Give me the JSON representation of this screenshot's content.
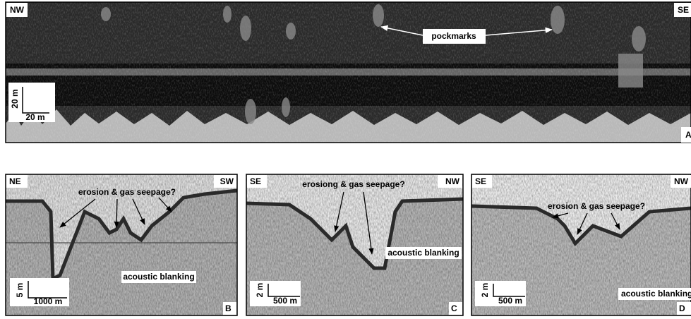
{
  "panel_a": {
    "left_label": "NW",
    "right_label": "SE",
    "annotation": "pockmarks",
    "scale_vertical": "20 m",
    "scale_horizontal": "20 m",
    "panel_label": "A"
  },
  "panels": [
    {
      "left_label": "NE",
      "right_label": "SW",
      "annotation": "erosion & gas seepage?",
      "blanking_label": "acoustic blanking",
      "scale_vertical": "5 m",
      "scale_horizontal": "1000 m",
      "panel_label": "B"
    },
    {
      "left_label": "SE",
      "right_label": "NW",
      "annotation": "erosiong & gas seepage?",
      "blanking_label": "acoustic blanking",
      "scale_vertical": "2 m",
      "scale_horizontal": "500 m",
      "panel_label": "C"
    },
    {
      "left_label": "SE",
      "right_label": "NW",
      "annotation": "erosion & gas seepage?",
      "blanking_label": "acoustic blanking",
      "scale_vertical": "2 m",
      "scale_horizontal": "500 m",
      "panel_label": "D"
    }
  ]
}
